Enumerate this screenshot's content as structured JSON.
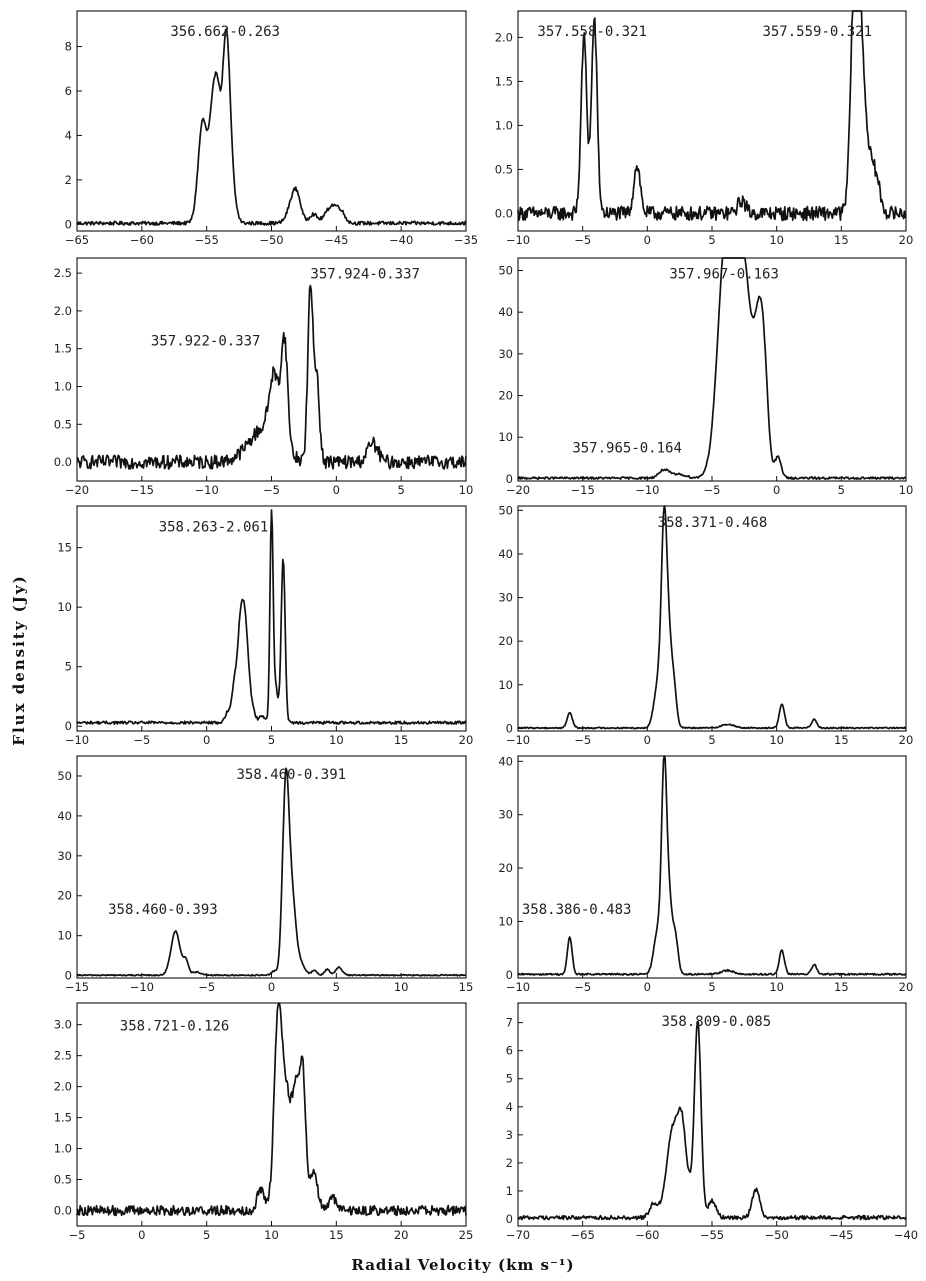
{
  "axis_titles": {
    "y": "Flux    density    (Jy)",
    "x": "Radial    Velocity    (km s⁻¹)"
  },
  "chart_data": [
    {
      "type": "line",
      "annotations": [
        "356.662-0.263"
      ],
      "xlim": [
        -65,
        -35
      ],
      "ylim": [
        -0.3,
        9.6
      ],
      "xticks": [
        -65,
        -60,
        -55,
        -50,
        -45,
        -40,
        -35
      ],
      "yticks": [
        0,
        2,
        4,
        6,
        8
      ],
      "grid": false,
      "series": [
        {
          "baseline": 0.05,
          "noise": 0.08,
          "peaks": [
            [
              -55.3,
              4.6,
              0.35
            ],
            [
              -54.6,
              3.5,
              0.25
            ],
            [
              -54.2,
              5.2,
              0.25
            ],
            [
              -53.5,
              8.4,
              0.3
            ],
            [
              -53.0,
              1.0,
              0.3
            ],
            [
              -48.3,
              1.1,
              0.4
            ],
            [
              -48.0,
              0.6,
              0.3
            ],
            [
              -46.8,
              0.4,
              0.3
            ],
            [
              -45.3,
              0.8,
              0.5
            ],
            [
              -44.6,
              0.3,
              0.3
            ]
          ]
        }
      ]
    },
    {
      "type": "line",
      "annotations": [
        "357.558-0.321",
        "357.559-0.321"
      ],
      "xlim": [
        -10,
        20
      ],
      "ylim": [
        -0.2,
        2.3
      ],
      "xticks": [
        -10,
        -5,
        0,
        5,
        10,
        15,
        20
      ],
      "yticks": [
        0.0,
        0.5,
        1.0,
        1.5,
        2.0
      ],
      "grid": false,
      "series": [
        {
          "baseline": 0.0,
          "noise": 0.08,
          "peaks": [
            [
              -4.9,
              2.0,
              0.22
            ],
            [
              -4.1,
              2.2,
              0.22
            ],
            [
              -0.8,
              0.55,
              0.25
            ],
            [
              7.3,
              0.15,
              0.3
            ],
            [
              16.0,
              1.9,
              0.3
            ],
            [
              16.3,
              1.9,
              0.3
            ],
            [
              16.8,
              0.9,
              0.35
            ],
            [
              17.6,
              0.45,
              0.35
            ]
          ]
        }
      ]
    },
    {
      "type": "line",
      "annotations": [
        "357.924-0.337",
        "357.922-0.337"
      ],
      "xlim": [
        -20,
        10
      ],
      "ylim": [
        -0.25,
        2.7
      ],
      "xticks": [
        -20,
        -15,
        -10,
        -5,
        0,
        5,
        10
      ],
      "yticks": [
        0.0,
        0.5,
        1.0,
        1.5,
        2.0,
        2.5
      ],
      "grid": false,
      "series": [
        {
          "baseline": 0.0,
          "noise": 0.09,
          "peaks": [
            [
              -5.5,
              0.45,
              1.2
            ],
            [
              -4.8,
              0.8,
              0.35
            ],
            [
              -4.0,
              1.4,
              0.25
            ],
            [
              -2.0,
              2.3,
              0.2
            ],
            [
              -1.5,
              1.1,
              0.2
            ],
            [
              2.8,
              0.25,
              0.4
            ]
          ]
        }
      ]
    },
    {
      "type": "line",
      "annotations": [
        "357.967-0.163",
        "357.965-0.164"
      ],
      "xlim": [
        -20,
        10
      ],
      "ylim": [
        -0.5,
        53
      ],
      "xticks": [
        -20,
        -15,
        -10,
        -5,
        0,
        5,
        10
      ],
      "yticks": [
        0,
        10,
        20,
        30,
        40,
        50
      ],
      "grid": false,
      "series": [
        {
          "baseline": 0.2,
          "noise": 0.25,
          "peaks": [
            [
              -8.7,
              2.0,
              0.4
            ],
            [
              -7.5,
              0.9,
              0.5
            ],
            [
              -5.0,
              2.0,
              0.5
            ],
            [
              -4.2,
              38,
              0.5
            ],
            [
              -3.7,
              28,
              0.4
            ],
            [
              -2.9,
              44,
              0.5
            ],
            [
              -2.2,
              26,
              0.5
            ],
            [
              -1.3,
              34,
              0.4
            ],
            [
              -0.9,
              10,
              0.3
            ],
            [
              0.1,
              5.0,
              0.25
            ]
          ]
        }
      ]
    },
    {
      "type": "line",
      "annotations": [
        "358.263-2.061"
      ],
      "xlim": [
        -10,
        20
      ],
      "ylim": [
        -0.4,
        18.5
      ],
      "xticks": [
        -10,
        -5,
        0,
        5,
        10,
        15,
        20
      ],
      "yticks": [
        0,
        5,
        10,
        15
      ],
      "grid": false,
      "series": [
        {
          "baseline": 0.3,
          "noise": 0.12,
          "peaks": [
            [
              1.6,
              0.8,
              0.2
            ],
            [
              2.1,
              2.5,
              0.2
            ],
            [
              2.6,
              7.5,
              0.25
            ],
            [
              3.0,
              6.8,
              0.25
            ],
            [
              3.5,
              1.0,
              0.25
            ],
            [
              4.3,
              0.6,
              0.2
            ],
            [
              5.0,
              17.0,
              0.12
            ],
            [
              5.3,
              3.0,
              0.2
            ],
            [
              5.9,
              13.8,
              0.15
            ]
          ]
        }
      ]
    },
    {
      "type": "line",
      "annotations": [
        "358.371-0.468"
      ],
      "xlim": [
        -10,
        20
      ],
      "ylim": [
        -0.6,
        51
      ],
      "xticks": [
        -10,
        -5,
        0,
        5,
        10,
        15,
        20
      ],
      "yticks": [
        0,
        10,
        20,
        30,
        40,
        50
      ],
      "grid": false,
      "series": [
        {
          "baseline": 0.1,
          "noise": 0.15,
          "peaks": [
            [
              -6.0,
              3.5,
              0.2
            ],
            [
              0.8,
              9.5,
              0.3
            ],
            [
              1.3,
              44,
              0.22
            ],
            [
              1.7,
              17,
              0.25
            ],
            [
              2.1,
              6.5,
              0.2
            ],
            [
              6.2,
              0.8,
              0.5
            ],
            [
              10.4,
              5.5,
              0.2
            ],
            [
              12.9,
              2.0,
              0.2
            ]
          ]
        }
      ]
    },
    {
      "type": "line",
      "annotations": [
        "358.460-0.391",
        "358.460-0.393"
      ],
      "xlim": [
        -15,
        15
      ],
      "ylim": [
        -0.6,
        55
      ],
      "xticks": [
        -15,
        -10,
        -5,
        0,
        5,
        10,
        15
      ],
      "yticks": [
        0,
        10,
        20,
        30,
        40,
        50
      ],
      "grid": false,
      "series": [
        {
          "baseline": 0.1,
          "noise": 0.15,
          "peaks": [
            [
              -7.4,
              11,
              0.35
            ],
            [
              -6.6,
              3.5,
              0.2
            ],
            [
              -5.8,
              0.8,
              0.3
            ],
            [
              0.2,
              1.0,
              0.2
            ],
            [
              1.1,
              47,
              0.25
            ],
            [
              1.6,
              18,
              0.3
            ],
            [
              2.3,
              2.5,
              0.3
            ],
            [
              3.3,
              1.2,
              0.2
            ],
            [
              4.3,
              1.5,
              0.2
            ],
            [
              5.2,
              2.0,
              0.25
            ]
          ]
        }
      ]
    },
    {
      "type": "line",
      "annotations": [
        "358.386-0.483"
      ],
      "xlim": [
        -10,
        20
      ],
      "ylim": [
        -0.6,
        41
      ],
      "xticks": [
        -10,
        -5,
        0,
        5,
        10,
        15,
        20
      ],
      "yticks": [
        0,
        10,
        20,
        30,
        40
      ],
      "grid": false,
      "series": [
        {
          "baseline": 0.1,
          "noise": 0.15,
          "peaks": [
            [
              -6.0,
              7.0,
              0.18
            ],
            [
              0.8,
              8.0,
              0.3
            ],
            [
              1.3,
              36,
              0.2
            ],
            [
              1.7,
              13,
              0.25
            ],
            [
              2.2,
              6.0,
              0.2
            ],
            [
              6.2,
              0.7,
              0.5
            ],
            [
              10.4,
              4.5,
              0.2
            ],
            [
              12.9,
              1.8,
              0.2
            ]
          ]
        }
      ]
    },
    {
      "type": "line",
      "annotations": [
        "358.721-0.126"
      ],
      "xlim": [
        -5,
        25
      ],
      "ylim": [
        -0.25,
        3.35
      ],
      "xticks": [
        -5,
        0,
        5,
        10,
        15,
        20,
        25
      ],
      "yticks": [
        0.0,
        0.5,
        1.0,
        1.5,
        2.0,
        2.5,
        3.0
      ],
      "grid": false,
      "series": [
        {
          "baseline": 0.0,
          "noise": 0.08,
          "peaks": [
            [
              9.2,
              0.35,
              0.3
            ],
            [
              10.5,
              2.95,
              0.3
            ],
            [
              11.2,
              1.8,
              0.4
            ],
            [
              11.9,
              1.6,
              0.25
            ],
            [
              12.4,
              2.2,
              0.22
            ],
            [
              13.2,
              0.6,
              0.35
            ],
            [
              14.7,
              0.2,
              0.3
            ]
          ]
        }
      ]
    },
    {
      "type": "line",
      "annotations": [
        "358.809-0.085"
      ],
      "xlim": [
        -70,
        -40
      ],
      "ylim": [
        -0.25,
        7.7
      ],
      "xticks": [
        -70,
        -65,
        -60,
        -55,
        -50,
        -45,
        -40
      ],
      "yticks": [
        0,
        1,
        2,
        3,
        4,
        5,
        6,
        7
      ],
      "grid": false,
      "series": [
        {
          "baseline": 0.05,
          "noise": 0.07,
          "peaks": [
            [
              -59.5,
              0.5,
              0.3
            ],
            [
              -58.0,
              3.2,
              0.5
            ],
            [
              -57.3,
              2.4,
              0.3
            ],
            [
              -56.7,
              0.8,
              0.3
            ],
            [
              -56.1,
              6.9,
              0.25
            ],
            [
              -55.0,
              0.6,
              0.3
            ],
            [
              -51.6,
              1.0,
              0.3
            ]
          ]
        }
      ]
    }
  ]
}
